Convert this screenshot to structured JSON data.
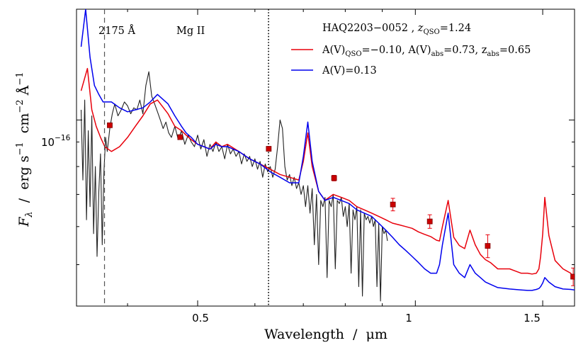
{
  "chart_data": {
    "type": "line",
    "object_name": "HAQ2203−0052",
    "redshift_label": "z",
    "redshift_sub": "QSO",
    "redshift_value": "=1.24",
    "xlabel": "Wavelength  /  μm",
    "ylabel_parts": {
      "f": "F",
      "lambda_sub": "λ",
      "sep": "  /  erg s",
      "e1": "−1",
      "cm": "  cm",
      "e2": "−2",
      "a": " Å",
      "e3": "−1"
    },
    "xscale": "log",
    "yscale": "log",
    "xlim": [
      0.34,
      1.66
    ],
    "ylim": [
      4.1e-17,
      1.7e-16
    ],
    "xticks": [
      {
        "value": 0.5,
        "label": "0.5"
      },
      {
        "value": 1.0,
        "label": "1"
      },
      {
        "value": 1.5,
        "label": "1.5"
      }
    ],
    "yticks": [
      {
        "value": 1e-16,
        "base": "10",
        "exp": "−16"
      }
    ],
    "vlines": [
      {
        "x": 0.3717,
        "label": "2175 Å",
        "style": "dashed"
      },
      {
        "x": 0.6266,
        "label": "Mg II",
        "style": "dotted"
      }
    ],
    "legend": {
      "position": "top-right",
      "entries": [
        {
          "series": "red",
          "parts": [
            "A(V)",
            "QSO",
            "=−0.10, A(V)",
            "abs",
            "=0.73, z",
            "abs",
            "=0.65"
          ]
        },
        {
          "series": "blue",
          "parts": [
            "A(V)=0.13"
          ]
        }
      ]
    },
    "series": [
      {
        "name": "red",
        "color": "#e8000b",
        "x": [
          0.345,
          0.352,
          0.357,
          0.362,
          0.367,
          0.372,
          0.38,
          0.39,
          0.4,
          0.41,
          0.42,
          0.43,
          0.44,
          0.455,
          0.465,
          0.475,
          0.482,
          0.49,
          0.5,
          0.51,
          0.52,
          0.53,
          0.54,
          0.55,
          0.57,
          0.59,
          0.61,
          0.63,
          0.65,
          0.67,
          0.69,
          0.7,
          0.71,
          0.72,
          0.735,
          0.75,
          0.77,
          0.79,
          0.81,
          0.83,
          0.85,
          0.87,
          0.89,
          0.91,
          0.93,
          0.95,
          0.97,
          0.99,
          1.01,
          1.03,
          1.05,
          1.07,
          1.08,
          1.09,
          1.11,
          1.13,
          1.15,
          1.17,
          1.19,
          1.21,
          1.23,
          1.25,
          1.27,
          1.3,
          1.35,
          1.4,
          1.43,
          1.45,
          1.47,
          1.482,
          1.49,
          1.5,
          1.51,
          1.53,
          1.56,
          1.6,
          1.64,
          1.66
        ],
        "y": [
          1.15,
          1.28,
          1.05,
          0.97,
          0.92,
          0.88,
          0.86,
          0.88,
          0.92,
          0.97,
          1.02,
          1.08,
          1.1,
          1.03,
          0.97,
          0.95,
          0.93,
          0.91,
          0.89,
          0.88,
          0.87,
          0.9,
          0.88,
          0.89,
          0.86,
          0.83,
          0.81,
          0.79,
          0.77,
          0.76,
          0.75,
          0.82,
          0.94,
          0.8,
          0.71,
          0.68,
          0.7,
          0.69,
          0.68,
          0.66,
          0.65,
          0.64,
          0.63,
          0.62,
          0.61,
          0.605,
          0.6,
          0.595,
          0.585,
          0.578,
          0.572,
          0.562,
          0.56,
          0.6,
          0.68,
          0.57,
          0.548,
          0.54,
          0.59,
          0.55,
          0.525,
          0.512,
          0.505,
          0.49,
          0.49,
          0.48,
          0.48,
          0.478,
          0.48,
          0.49,
          0.52,
          0.58,
          0.69,
          0.575,
          0.51,
          0.49,
          0.48,
          0.465
        ]
      },
      {
        "name": "blue",
        "color": "#0000ee",
        "x": [
          0.345,
          0.35,
          0.355,
          0.36,
          0.365,
          0.37,
          0.38,
          0.39,
          0.4,
          0.41,
          0.42,
          0.43,
          0.44,
          0.455,
          0.465,
          0.475,
          0.482,
          0.49,
          0.5,
          0.51,
          0.52,
          0.53,
          0.54,
          0.55,
          0.57,
          0.59,
          0.61,
          0.63,
          0.65,
          0.67,
          0.69,
          0.7,
          0.71,
          0.72,
          0.735,
          0.75,
          0.77,
          0.79,
          0.81,
          0.83,
          0.85,
          0.87,
          0.89,
          0.91,
          0.93,
          0.95,
          0.97,
          0.99,
          1.01,
          1.03,
          1.05,
          1.07,
          1.08,
          1.09,
          1.11,
          1.13,
          1.15,
          1.17,
          1.19,
          1.21,
          1.23,
          1.25,
          1.27,
          1.3,
          1.35,
          1.4,
          1.43,
          1.45,
          1.47,
          1.482,
          1.49,
          1.5,
          1.51,
          1.53,
          1.56,
          1.6,
          1.64,
          1.66
        ],
        "y": [
          1.42,
          1.7,
          1.35,
          1.18,
          1.13,
          1.09,
          1.09,
          1.06,
          1.04,
          1.05,
          1.06,
          1.09,
          1.13,
          1.08,
          1.02,
          0.97,
          0.94,
          0.92,
          0.89,
          0.88,
          0.87,
          0.89,
          0.88,
          0.88,
          0.86,
          0.83,
          0.81,
          0.78,
          0.76,
          0.74,
          0.74,
          0.84,
          0.99,
          0.82,
          0.71,
          0.68,
          0.69,
          0.68,
          0.67,
          0.65,
          0.64,
          0.63,
          0.61,
          0.59,
          0.57,
          0.55,
          0.535,
          0.52,
          0.505,
          0.49,
          0.48,
          0.48,
          0.5,
          0.55,
          0.64,
          0.5,
          0.48,
          0.47,
          0.5,
          0.48,
          0.47,
          0.46,
          0.455,
          0.448,
          0.445,
          0.443,
          0.442,
          0.442,
          0.444,
          0.446,
          0.45,
          0.458,
          0.47,
          0.46,
          0.45,
          0.445,
          0.444,
          0.443
        ]
      },
      {
        "name": "observed",
        "color": "#222222",
        "x": [
          0.345,
          0.347,
          0.349,
          0.351,
          0.353,
          0.355,
          0.357,
          0.359,
          0.361,
          0.363,
          0.365,
          0.367,
          0.369,
          0.371,
          0.373,
          0.375,
          0.378,
          0.381,
          0.384,
          0.388,
          0.392,
          0.396,
          0.4,
          0.404,
          0.408,
          0.412,
          0.416,
          0.42,
          0.424,
          0.428,
          0.432,
          0.436,
          0.44,
          0.444,
          0.448,
          0.452,
          0.456,
          0.46,
          0.465,
          0.47,
          0.475,
          0.48,
          0.485,
          0.49,
          0.495,
          0.5,
          0.505,
          0.51,
          0.515,
          0.52,
          0.525,
          0.53,
          0.535,
          0.54,
          0.545,
          0.55,
          0.555,
          0.56,
          0.565,
          0.57,
          0.575,
          0.58,
          0.585,
          0.59,
          0.595,
          0.6,
          0.605,
          0.61,
          0.615,
          0.62,
          0.625,
          0.63,
          0.635,
          0.64,
          0.645,
          0.65,
          0.655,
          0.66,
          0.665,
          0.67,
          0.675,
          0.68,
          0.685,
          0.69,
          0.695,
          0.7,
          0.705,
          0.71,
          0.715,
          0.72,
          0.725,
          0.73,
          0.735,
          0.74,
          0.745,
          0.75,
          0.755,
          0.76,
          0.765,
          0.77,
          0.775,
          0.78,
          0.785,
          0.79,
          0.795,
          0.8,
          0.805,
          0.81,
          0.815,
          0.82,
          0.825,
          0.83,
          0.835,
          0.84,
          0.845,
          0.85,
          0.855,
          0.86,
          0.865,
          0.87,
          0.875,
          0.88,
          0.885,
          0.89,
          0.895,
          0.9,
          0.905,
          0.91,
          0.915
        ],
        "y": [
          1.05,
          0.75,
          1.1,
          0.62,
          0.95,
          0.66,
          1.02,
          0.58,
          0.8,
          0.52,
          0.71,
          0.85,
          0.55,
          0.78,
          0.92,
          0.86,
          0.96,
          1.03,
          1.08,
          1.02,
          1.05,
          1.09,
          1.07,
          1.03,
          1.06,
          1.05,
          1.1,
          1.03,
          1.18,
          1.26,
          1.12,
          1.08,
          1.04,
          1.0,
          0.96,
          0.99,
          0.94,
          0.92,
          0.97,
          0.91,
          0.95,
          0.89,
          0.93,
          0.9,
          0.88,
          0.93,
          0.87,
          0.91,
          0.84,
          0.89,
          0.86,
          0.9,
          0.86,
          0.88,
          0.83,
          0.89,
          0.85,
          0.87,
          0.84,
          0.86,
          0.81,
          0.85,
          0.82,
          0.84,
          0.8,
          0.83,
          0.79,
          0.82,
          0.76,
          0.81,
          0.78,
          0.8,
          0.76,
          0.79,
          0.88,
          1.0,
          0.96,
          0.8,
          0.75,
          0.77,
          0.73,
          0.76,
          0.72,
          0.74,
          0.7,
          0.73,
          0.66,
          0.73,
          0.64,
          0.72,
          0.55,
          0.7,
          0.5,
          0.68,
          0.66,
          0.69,
          0.47,
          0.68,
          0.66,
          0.7,
          0.49,
          0.68,
          0.67,
          0.69,
          0.63,
          0.66,
          0.6,
          0.67,
          0.48,
          0.65,
          0.62,
          0.66,
          0.45,
          0.65,
          0.43,
          0.64,
          0.62,
          0.63,
          0.61,
          0.63,
          0.6,
          0.62,
          0.45,
          0.61,
          0.42,
          0.6,
          0.58,
          0.59,
          0.56
        ]
      }
    ],
    "photometry": [
      {
        "x": 0.378,
        "y": 0.975,
        "err": 0.0
      },
      {
        "x": 0.473,
        "y": 0.921,
        "err": 0.0
      },
      {
        "x": 0.627,
        "y": 0.871,
        "err": 0.0
      },
      {
        "x": 0.772,
        "y": 0.757,
        "err": 0.01
      },
      {
        "x": 0.931,
        "y": 0.667,
        "err": 0.02
      },
      {
        "x": 1.047,
        "y": 0.615,
        "err": 0.02
      },
      {
        "x": 1.259,
        "y": 0.547,
        "err": 0.03
      },
      {
        "x": 1.653,
        "y": 0.472,
        "err": 0.02
      }
    ],
    "flux_unit_note": "series y values are in units of 1e-16"
  }
}
